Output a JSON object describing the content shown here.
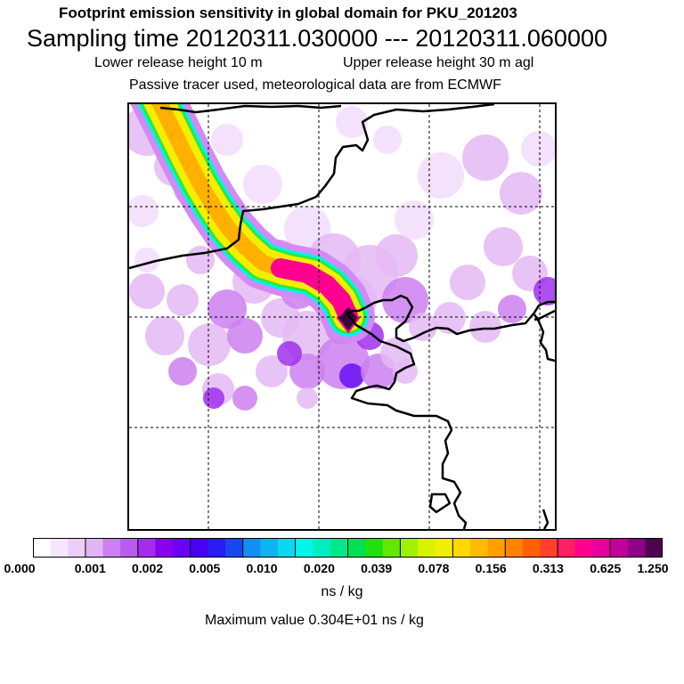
{
  "header": {
    "title": "Footprint emission sensitivity in global domain for PKU_201203",
    "sampling": "Sampling time   20120311.030000 --- 20120311.060000",
    "lower_release": "Lower release height   10 m",
    "upper_release": "Upper release height   30 m    agl",
    "tracer_note": "Passive tracer used, meteorological data are from ECMWF"
  },
  "colorbar": {
    "tick_labels": [
      "0.000",
      "0.001",
      "0.002",
      "0.005",
      "0.010",
      "0.020",
      "0.039",
      "0.078",
      "0.156",
      "0.313",
      "0.625",
      "1.250"
    ],
    "unit": "ns / kg",
    "colors": [
      "#ffffff",
      "#f6e6fb",
      "#eccff8",
      "#e0b4f5",
      "#cc7ff0",
      "#bb5aee",
      "#a52ced",
      "#8a00ee",
      "#6b00f5",
      "#4a00f5",
      "#2a1bf2",
      "#1648f0",
      "#1090f0",
      "#0cb4f0",
      "#0ad8f2",
      "#00f7ea",
      "#00eec0",
      "#00e88a",
      "#00e050",
      "#20e010",
      "#60e800",
      "#a0f000",
      "#d8f200",
      "#f2ee00",
      "#ffd800",
      "#ffbc00",
      "#ffa000",
      "#ff8200",
      "#ff6000",
      "#ff4028",
      "#ff2060",
      "#ff0090",
      "#e6009e",
      "#c2009a",
      "#900088",
      "#500050"
    ]
  },
  "max_value_text": "Maximum value  0.304E+01 ns / kg",
  "map": {
    "plume_colors": {
      "outer": "#d38af2",
      "cyan": "#00f2ee",
      "green": "#30e838",
      "yellow": "#f4ee00",
      "orange": "#ffb000",
      "magenta": "#ff0090",
      "peak": "#3a0040"
    },
    "background_colors": [
      "#f2dcfa",
      "#e4b8f5",
      "#cc80f0",
      "#a030ec",
      "#6810f2"
    ]
  }
}
